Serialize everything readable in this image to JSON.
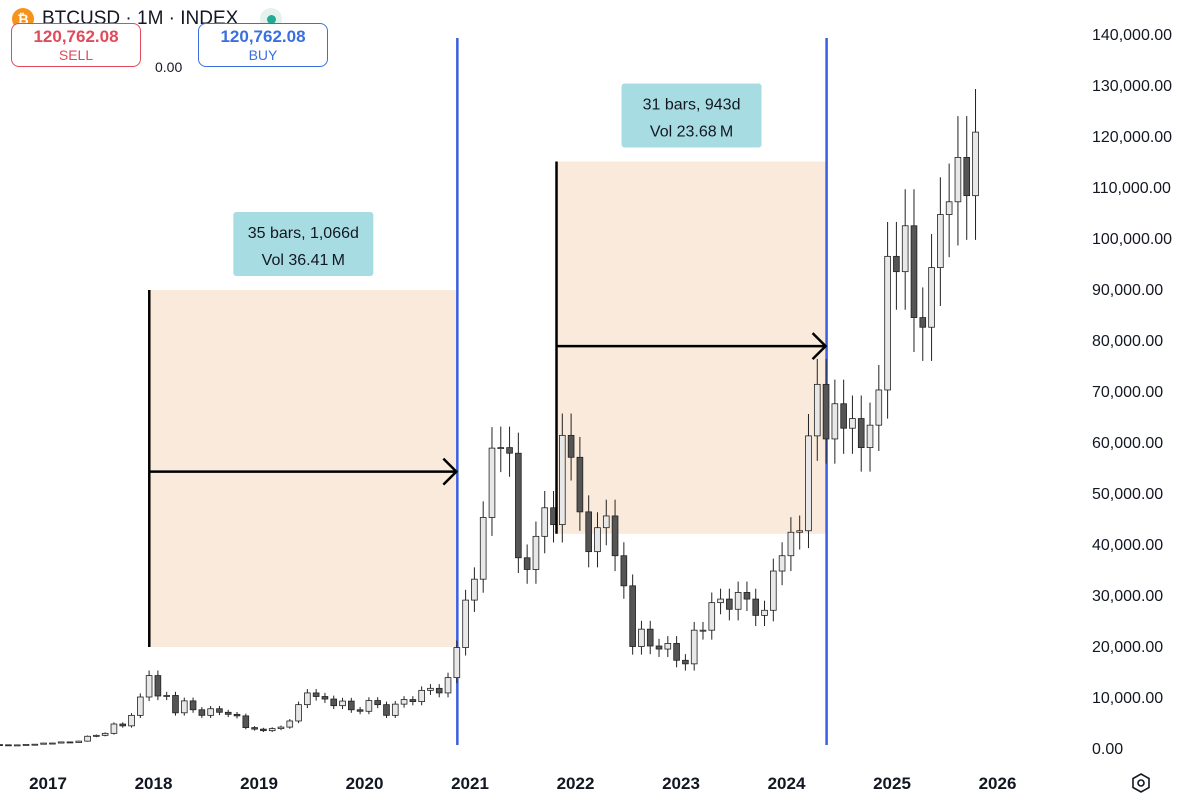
{
  "header": {
    "coin_glyph": "₿",
    "symbol_label": "BTCUSD · 1M · INDEX",
    "live_icon": "status-dot-icon"
  },
  "trade": {
    "sell_price": "120,762.08",
    "sell_label": "SELL",
    "spread": "0.00",
    "buy_price": "120,762.08",
    "buy_label": "BUY"
  },
  "colors": {
    "range_fill": "#f9eadb",
    "vline": "#3a5fe0",
    "label_bg": "#a8dce3",
    "candle_up": "#e8e8e8",
    "candle_down": "#555555"
  },
  "chart_data": {
    "type": "candlestick",
    "symbol": "BTCUSD",
    "interval": "1M",
    "ylim": [
      0,
      140000
    ],
    "y_ticks": [
      "0.00",
      "10,000.00",
      "20,000.00",
      "30,000.00",
      "40,000.00",
      "50,000.00",
      "60,000.00",
      "70,000.00",
      "80,000.00",
      "90,000.00",
      "100,000.00",
      "110,000.00",
      "120,000.00",
      "130,000.00",
      "140,000.00"
    ],
    "y_tick_values": [
      0,
      10000,
      20000,
      30000,
      40000,
      50000,
      60000,
      70000,
      80000,
      90000,
      100000,
      110000,
      120000,
      130000,
      140000
    ],
    "x_ticks": [
      "2017",
      "2018",
      "2019",
      "2020",
      "2021",
      "2022",
      "2023",
      "2024",
      "2025",
      "2026"
    ],
    "x_tick_years": [
      2017,
      2018,
      2019,
      2020,
      2021,
      2022,
      2023,
      2024,
      2025,
      2026
    ],
    "first_candle_year": 2014.0,
    "closes": [
      800,
      600,
      500,
      450,
      400,
      380,
      480,
      620,
      590,
      450,
      420,
      430,
      320,
      250,
      260,
      240,
      230,
      230,
      280,
      280,
      240,
      310,
      370,
      430,
      368,
      430,
      416,
      448,
      533,
      673,
      624,
      575,
      609,
      700,
      742,
      963,
      970,
      1190,
      1080,
      1350,
      2300,
      2480,
      2870,
      4700,
      4340,
      6400,
      10000,
      14200,
      10200,
      10300,
      6900,
      9240,
      7500,
      6400,
      7700,
      7000,
      6600,
      6300,
      4000,
      3700,
      3400,
      3800,
      4100,
      5300,
      8500,
      10800,
      10100,
      9600,
      8300,
      9200,
      7500,
      7200,
      9300,
      8500,
      6400,
      8600,
      9500,
      9100,
      11300,
      11700,
      10800,
      13800,
      19700,
      29000,
      33100,
      45200,
      58800,
      58900,
      57800,
      37300,
      35000,
      41500,
      47100,
      43800,
      61300,
      57000,
      46300,
      38500,
      43200,
      45500,
      37700,
      31800,
      19900,
      23300,
      20000,
      19400,
      20500,
      17200,
      16500,
      23100,
      23100,
      28500,
      29200,
      27200,
      30500,
      29200,
      26000,
      27000,
      34700,
      37700,
      42300,
      42600,
      61200,
      71300,
      60600,
      67500,
      62700,
      64600,
      58900,
      63300,
      70200,
      96400,
      93400,
      102400,
      84400,
      82500,
      94200,
      104600,
      107100,
      115800,
      108300,
      120762
    ],
    "ranges": [
      {
        "label_bars": "35 bars, 1,066d",
        "label_vol": "Vol 36.41 M",
        "start_year": 2017.96,
        "end_year": 2020.88,
        "price_top": 89800,
        "price_bottom": 19800,
        "arrow_price": 54200
      },
      {
        "label_bars": "31 bars, 943d",
        "label_vol": "Vol 23.68 M",
        "start_year": 2021.82,
        "end_year": 2024.38,
        "price_top": 115000,
        "price_bottom": 42000,
        "arrow_price": 78800
      }
    ],
    "vlines_year": [
      2020.88,
      2024.38
    ]
  }
}
